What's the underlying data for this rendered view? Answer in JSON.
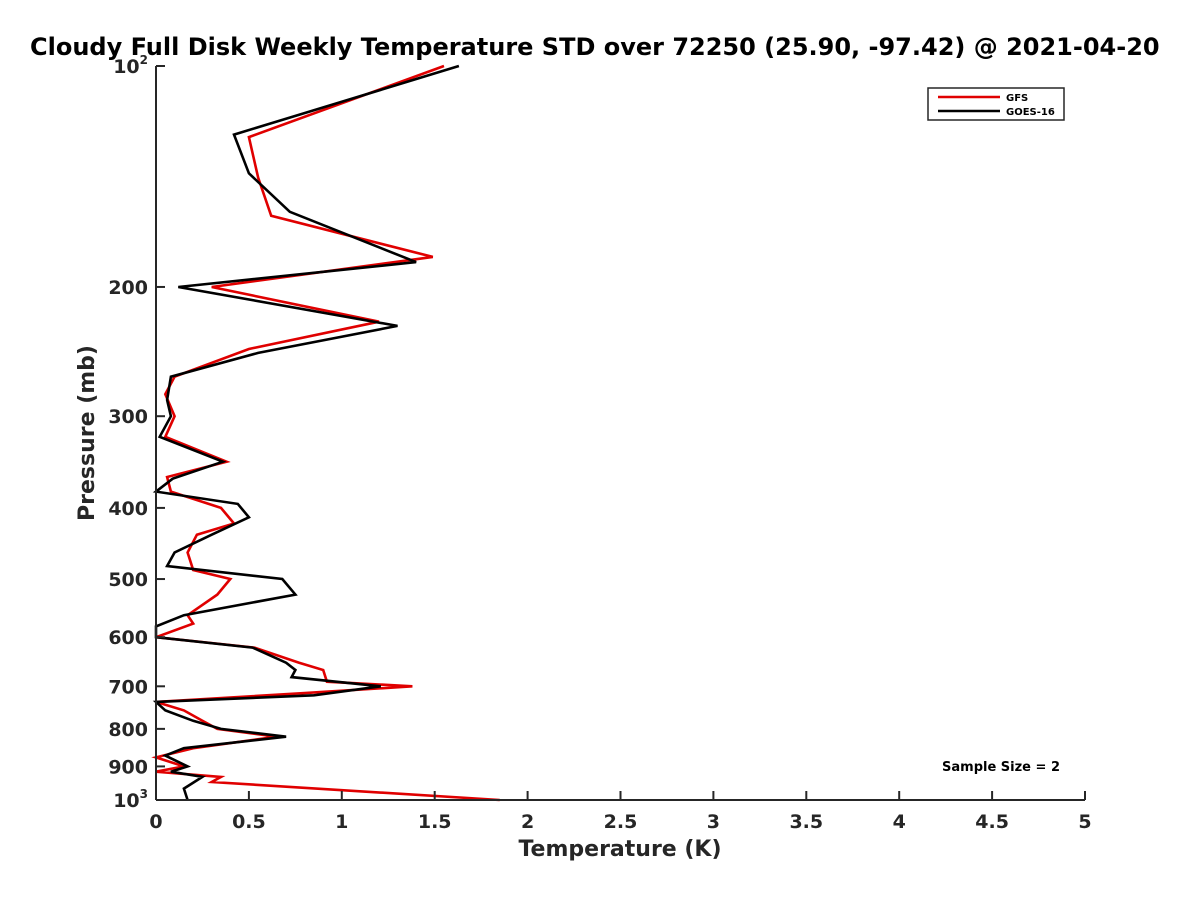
{
  "chart_data": {
    "type": "line",
    "orientation": "vertical-profile",
    "title": "Cloudy Full Disk Weekly Temperature STD over 72250 (25.90, -97.42) @ 2021-04-20",
    "xlabel": "Temperature (K)",
    "ylabel": "Pressure (mb)",
    "xlim": [
      0,
      5
    ],
    "ylim": [
      100,
      1000
    ],
    "yscale": "log",
    "yreversed": true,
    "grid": false,
    "legend_position": "top-right",
    "x_ticks": [
      {
        "value": 0,
        "label": "0"
      },
      {
        "value": 0.5,
        "label": "0.5"
      },
      {
        "value": 1,
        "label": "1"
      },
      {
        "value": 1.5,
        "label": "1.5"
      },
      {
        "value": 2,
        "label": "2"
      },
      {
        "value": 2.5,
        "label": "2.5"
      },
      {
        "value": 3,
        "label": "3"
      },
      {
        "value": 3.5,
        "label": "3.5"
      },
      {
        "value": 4,
        "label": "4"
      },
      {
        "value": 4.5,
        "label": "4.5"
      },
      {
        "value": 5,
        "label": "5"
      }
    ],
    "y_ticks": [
      {
        "value": 100,
        "base": "10",
        "exp": "2"
      },
      {
        "value": 200,
        "base": "200",
        "exp": ""
      },
      {
        "value": 300,
        "base": "300",
        "exp": ""
      },
      {
        "value": 400,
        "base": "400",
        "exp": ""
      },
      {
        "value": 500,
        "base": "500",
        "exp": ""
      },
      {
        "value": 600,
        "base": "600",
        "exp": ""
      },
      {
        "value": 700,
        "base": "700",
        "exp": ""
      },
      {
        "value": 800,
        "base": "800",
        "exp": ""
      },
      {
        "value": 900,
        "base": "900",
        "exp": ""
      },
      {
        "value": 1000,
        "base": "10",
        "exp": "3"
      }
    ],
    "annotation": "Sample Size = 2",
    "series": [
      {
        "name": "GFS",
        "color": "#e00000",
        "points": [
          [
            1.55,
            100
          ],
          [
            0.5,
            125
          ],
          [
            0.55,
            142
          ],
          [
            0.62,
            160
          ],
          [
            1.49,
            182
          ],
          [
            0.3,
            200
          ],
          [
            1.2,
            223
          ],
          [
            0.5,
            243
          ],
          [
            0.1,
            265
          ],
          [
            0.05,
            280
          ],
          [
            0.1,
            300
          ],
          [
            0.05,
            320
          ],
          [
            0.38,
            346
          ],
          [
            0.06,
            363
          ],
          [
            0.08,
            380
          ],
          [
            0.35,
            400
          ],
          [
            0.42,
            420
          ],
          [
            0.22,
            435
          ],
          [
            0.17,
            460
          ],
          [
            0.2,
            486
          ],
          [
            0.4,
            500
          ],
          [
            0.33,
            525
          ],
          [
            0.17,
            560
          ],
          [
            0.2,
            575
          ],
          [
            0.0,
            600
          ],
          [
            0.53,
            620
          ],
          [
            0.77,
            650
          ],
          [
            0.9,
            665
          ],
          [
            0.92,
            690
          ],
          [
            1.38,
            700
          ],
          [
            0.8,
            715
          ],
          [
            0.0,
            735
          ],
          [
            0.15,
            755
          ],
          [
            0.25,
            780
          ],
          [
            0.33,
            800
          ],
          [
            0.65,
            820
          ],
          [
            0.2,
            850
          ],
          [
            0.0,
            875
          ],
          [
            0.15,
            900
          ],
          [
            0.0,
            915
          ],
          [
            0.35,
            930
          ],
          [
            0.3,
            945
          ],
          [
            1.85,
            1000
          ]
        ]
      },
      {
        "name": "GOES-16",
        "color": "#000000",
        "points": [
          [
            1.63,
            100
          ],
          [
            0.42,
            124
          ],
          [
            0.5,
            140
          ],
          [
            0.72,
            158
          ],
          [
            1.4,
            185
          ],
          [
            0.12,
            200
          ],
          [
            1.3,
            226
          ],
          [
            0.55,
            246
          ],
          [
            0.08,
            265
          ],
          [
            0.06,
            285
          ],
          [
            0.08,
            300
          ],
          [
            0.02,
            320
          ],
          [
            0.36,
            346
          ],
          [
            0.09,
            365
          ],
          [
            0.0,
            380
          ],
          [
            0.44,
            395
          ],
          [
            0.5,
            412
          ],
          [
            0.3,
            435
          ],
          [
            0.1,
            460
          ],
          [
            0.06,
            480
          ],
          [
            0.68,
            500
          ],
          [
            0.75,
            525
          ],
          [
            0.15,
            560
          ],
          [
            0.0,
            580
          ],
          [
            0.0,
            600
          ],
          [
            0.52,
            620
          ],
          [
            0.7,
            650
          ],
          [
            0.75,
            665
          ],
          [
            0.73,
            680
          ],
          [
            1.21,
            700
          ],
          [
            0.85,
            720
          ],
          [
            0.0,
            735
          ],
          [
            0.05,
            755
          ],
          [
            0.2,
            780
          ],
          [
            0.35,
            800
          ],
          [
            0.7,
            820
          ],
          [
            0.15,
            850
          ],
          [
            0.05,
            870
          ],
          [
            0.17,
            900
          ],
          [
            0.08,
            915
          ],
          [
            0.25,
            930
          ],
          [
            0.15,
            965
          ],
          [
            0.17,
            1000
          ]
        ]
      }
    ]
  }
}
